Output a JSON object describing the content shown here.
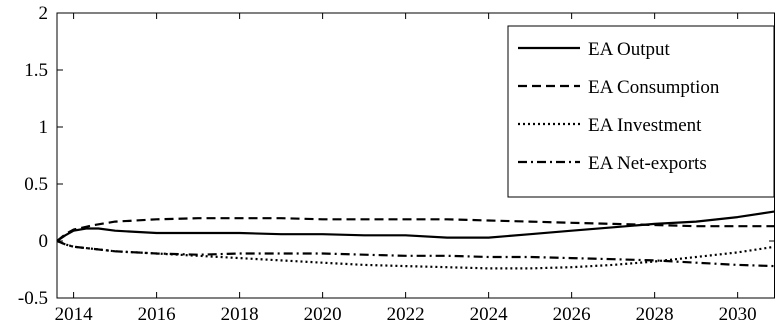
{
  "chart_data": {
    "type": "line",
    "title": "",
    "xlabel": "",
    "ylabel": "",
    "xlim": [
      2013.6,
      2030.9
    ],
    "ylim": [
      -0.5,
      2
    ],
    "xticks": [
      "2014",
      "2016",
      "2018",
      "2020",
      "2022",
      "2024",
      "2026",
      "2028",
      "2030"
    ],
    "yticks": [
      "-0.5",
      "0",
      "0.5",
      "1",
      "1.5",
      "2"
    ],
    "grid": false,
    "legend": "top-right",
    "series": [
      {
        "name": "EA Output",
        "dash": "solid",
        "x": [
          2013.6,
          2013.8,
          2014.0,
          2014.3,
          2014.6,
          2015.0,
          2015.5,
          2016.0,
          2016.5,
          2017.0,
          2018.0,
          2019.0,
          2020.0,
          2021.0,
          2022.0,
          2023.0,
          2024.0,
          2025.0,
          2026.0,
          2027.0,
          2028.0,
          2029.0,
          2030.0,
          2030.9
        ],
        "y": [
          0,
          0.05,
          0.09,
          0.11,
          0.11,
          0.09,
          0.08,
          0.07,
          0.07,
          0.07,
          0.07,
          0.06,
          0.06,
          0.05,
          0.05,
          0.03,
          0.03,
          0.06,
          0.09,
          0.12,
          0.15,
          0.17,
          0.21,
          0.26
        ]
      },
      {
        "name": "EA Consumption",
        "dash": "dashed",
        "x": [
          2013.6,
          2013.8,
          2014.0,
          2014.5,
          2015.0,
          2015.5,
          2016.0,
          2017.0,
          2018.0,
          2019.0,
          2020.0,
          2021.0,
          2022.0,
          2023.0,
          2024.0,
          2025.0,
          2026.0,
          2027.0,
          2028.0,
          2029.0,
          2030.0,
          2030.9
        ],
        "y": [
          0,
          0.06,
          0.1,
          0.14,
          0.17,
          0.18,
          0.19,
          0.2,
          0.2,
          0.2,
          0.19,
          0.19,
          0.19,
          0.19,
          0.18,
          0.17,
          0.16,
          0.15,
          0.14,
          0.13,
          0.13,
          0.13
        ]
      },
      {
        "name": "EA Investment",
        "dash": "dotted",
        "x": [
          2013.6,
          2013.8,
          2014.0,
          2014.5,
          2015.0,
          2016.0,
          2017.0,
          2018.0,
          2019.0,
          2020.0,
          2021.0,
          2022.0,
          2023.0,
          2024.0,
          2025.0,
          2026.0,
          2027.0,
          2028.0,
          2029.0,
          2030.0,
          2030.9
        ],
        "y": [
          0,
          -0.03,
          -0.05,
          -0.07,
          -0.09,
          -0.11,
          -0.13,
          -0.15,
          -0.17,
          -0.19,
          -0.21,
          -0.22,
          -0.23,
          -0.24,
          -0.24,
          -0.23,
          -0.21,
          -0.18,
          -0.14,
          -0.1,
          -0.05
        ]
      },
      {
        "name": "EA Net-exports",
        "dash": "dashdot",
        "x": [
          2013.6,
          2013.8,
          2014.0,
          2014.5,
          2015.0,
          2016.0,
          2017.0,
          2018.0,
          2019.0,
          2020.0,
          2021.0,
          2022.0,
          2023.0,
          2024.0,
          2025.0,
          2026.0,
          2027.0,
          2028.0,
          2029.0,
          2030.0,
          2030.9
        ],
        "y": [
          0,
          -0.03,
          -0.05,
          -0.07,
          -0.09,
          -0.11,
          -0.12,
          -0.11,
          -0.11,
          -0.11,
          -0.12,
          -0.13,
          -0.13,
          -0.14,
          -0.14,
          -0.15,
          -0.16,
          -0.17,
          -0.19,
          -0.21,
          -0.22
        ]
      }
    ]
  }
}
